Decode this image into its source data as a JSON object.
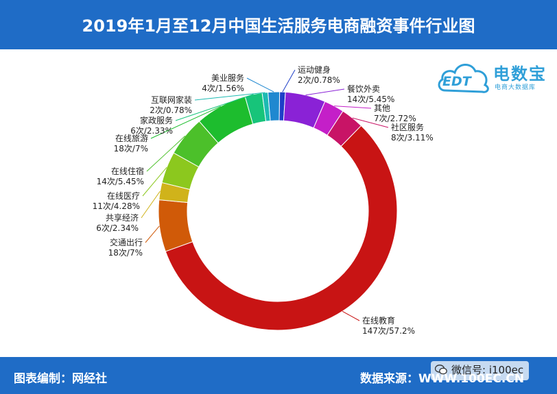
{
  "header": {
    "title": "2019年1月至12月中国生活服务电商融资事件行业图"
  },
  "footer": {
    "left": "图表编制：网经社",
    "right": "数据来源：WWW.100EC.CN"
  },
  "watermark": {
    "wechat": "微信号: i100ec"
  },
  "logo": {
    "brand": "电数宝",
    "mark": "EDT",
    "sub": "电商大数据库"
  },
  "colors": {
    "header_bg": "#1f6cc6",
    "edu": "#c81414",
    "transport": "#d05a08",
    "sharing": "#d0b31a",
    "medical": "#8cc81e",
    "hotel": "#4cc02a",
    "travel": "#1dbd2e",
    "housekeeping": "#17c47a",
    "decor": "#1dbab2",
    "beauty": "#1f88d0",
    "sports": "#1e3fc8",
    "catering": "#8a22d6",
    "other": "#c41fc8",
    "community": "#c81466"
  },
  "chart_data": {
    "type": "pie",
    "style": "donut",
    "title": "2019年1月至12月中国生活服务电商融资事件行业图",
    "unit": "次",
    "slices": [
      {
        "name": "运动健身",
        "count": 2,
        "percent": 0.78,
        "label": "2次/0.78%",
        "color": "#1e3fc8"
      },
      {
        "name": "餐饮外卖",
        "count": 14,
        "percent": 5.45,
        "label": "14次/5.45%",
        "color": "#8a22d6"
      },
      {
        "name": "其他",
        "count": 7,
        "percent": 2.72,
        "label": "7次/2.72%",
        "color": "#c41fc8"
      },
      {
        "name": "社区服务",
        "count": 8,
        "percent": 3.11,
        "label": "8次/3.11%",
        "color": "#c81466"
      },
      {
        "name": "在线教育",
        "count": 147,
        "percent": 57.2,
        "label": "147次/57.2%",
        "color": "#c81414"
      },
      {
        "name": "交通出行",
        "count": 18,
        "percent": 7,
        "label": "18次/7%",
        "color": "#d05a08"
      },
      {
        "name": "共享经济",
        "count": 6,
        "percent": 2.34,
        "label": "6次/2.34%",
        "color": "#d0b31a"
      },
      {
        "name": "在线医疗",
        "count": 11,
        "percent": 4.28,
        "label": "11次/4.28%",
        "color": "#8cc81e"
      },
      {
        "name": "在线住宿",
        "count": 14,
        "percent": 5.45,
        "label": "14次/5.45%",
        "color": "#4cc02a"
      },
      {
        "name": "在线旅游",
        "count": 18,
        "percent": 7,
        "label": "18次/7%",
        "color": "#1dbd2e"
      },
      {
        "name": "家政服务",
        "count": 6,
        "percent": 2.33,
        "label": "6次/2.33%",
        "color": "#17c47a"
      },
      {
        "name": "互联网家装",
        "count": 2,
        "percent": 0.78,
        "label": "2次/0.78%",
        "color": "#1dbab2"
      },
      {
        "name": "美业服务",
        "count": 4,
        "percent": 1.56,
        "label": "4次/1.56%",
        "color": "#1f88d0"
      }
    ]
  }
}
